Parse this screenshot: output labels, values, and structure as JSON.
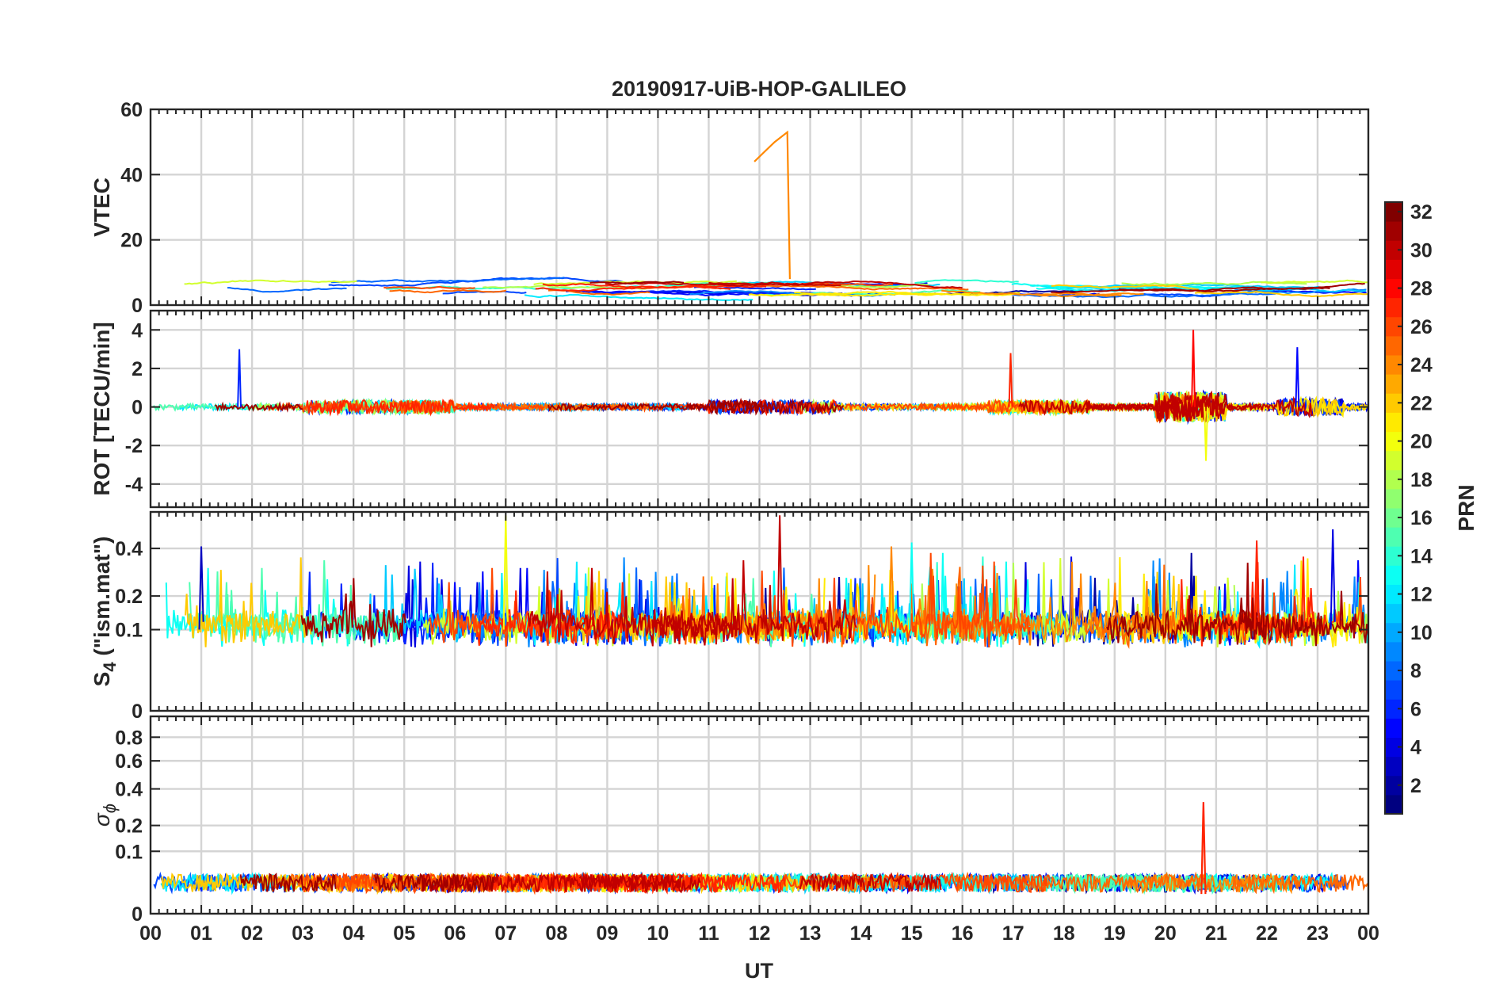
{
  "figure": {
    "title": "20190917-UiB-HOP-GALILEO",
    "xlabel": "UT",
    "x_tick_labels": [
      "00",
      "01",
      "02",
      "03",
      "04",
      "05",
      "06",
      "07",
      "08",
      "09",
      "10",
      "11",
      "12",
      "13",
      "14",
      "15",
      "16",
      "17",
      "18",
      "19",
      "20",
      "21",
      "22",
      "23",
      "00"
    ]
  },
  "colorbar": {
    "label": "PRN",
    "range": [
      1,
      32
    ],
    "tick_labels": [
      "2",
      "4",
      "6",
      "8",
      "10",
      "12",
      "14",
      "16",
      "18",
      "20",
      "22",
      "24",
      "26",
      "28",
      "30",
      "32"
    ],
    "colormap": "jet"
  },
  "chart_data": [
    {
      "type": "line",
      "panel": "VTEC",
      "ylabel": "VTEC",
      "xlim": [
        0,
        24
      ],
      "ylim": [
        0,
        60
      ],
      "yticks": [
        0,
        20,
        40,
        60
      ],
      "ytick_labels": [
        "0",
        "20",
        "40",
        "60"
      ],
      "grid": true,
      "series_summary": "Multiple GALILEO PRNs (colored by PRN), baseline 2-10 TECU; PRN ~24 spike to ~53 TECU near 12.5 UT",
      "annotations": [
        {
          "prn": 24,
          "x": [
            11.9,
            12.1,
            12.3,
            12.55,
            12.6
          ],
          "y": [
            44,
            47,
            50,
            53,
            8
          ]
        }
      ]
    },
    {
      "type": "line",
      "panel": "ROT",
      "ylabel": "ROT [TECU/min]",
      "xlim": [
        0,
        24
      ],
      "ylim": [
        -5.2,
        5
      ],
      "yticks": [
        -4,
        -2,
        0,
        2,
        4
      ],
      "ytick_labels": [
        "-4",
        "-2",
        "0",
        "2",
        "4"
      ],
      "grid": true,
      "series_summary": "Near-zero ROT with bursts; peaks ~3 at 1.8 UT, ~2.8 at 17 UT, ~4 at 20.6 UT, ~3 at 22.6 UT"
    },
    {
      "type": "line",
      "panel": "S4",
      "ylabel": "S4 (\"ism.mat\")",
      "ylabel_main": "S",
      "ylabel_sub": "4",
      "ylabel_rest": " (\"ism.mat\")",
      "xlim": [
        0,
        24
      ],
      "ylim": [
        0,
        0.6
      ],
      "yscale": "sqrt",
      "yticks": [
        0,
        0.1,
        0.2,
        0.4
      ],
      "ytick_labels": [
        "0",
        "0.1",
        "0.2",
        "0.4"
      ],
      "grid": true,
      "series_summary": "S4 baseline 0.05-0.15 with many peaks 0.3-0.58 across the day"
    },
    {
      "type": "line",
      "panel": "sigma_phi",
      "ylabel": "σ ϕ",
      "ylabel_main": "σ",
      "ylabel_sub": "ϕ",
      "xlim": [
        0,
        24
      ],
      "ylim": [
        0,
        1
      ],
      "yscale": "sqrt",
      "yticks": [
        0,
        0.1,
        0.2,
        0.4,
        0.6,
        0.8
      ],
      "ytick_labels": [
        "0",
        "0.1",
        "0.2",
        "0.4",
        "0.6",
        "0.8"
      ],
      "grid": true,
      "series_summary": "Phase scintillation mostly < 0.05; spike ~0.32 near 20.7 UT"
    }
  ]
}
